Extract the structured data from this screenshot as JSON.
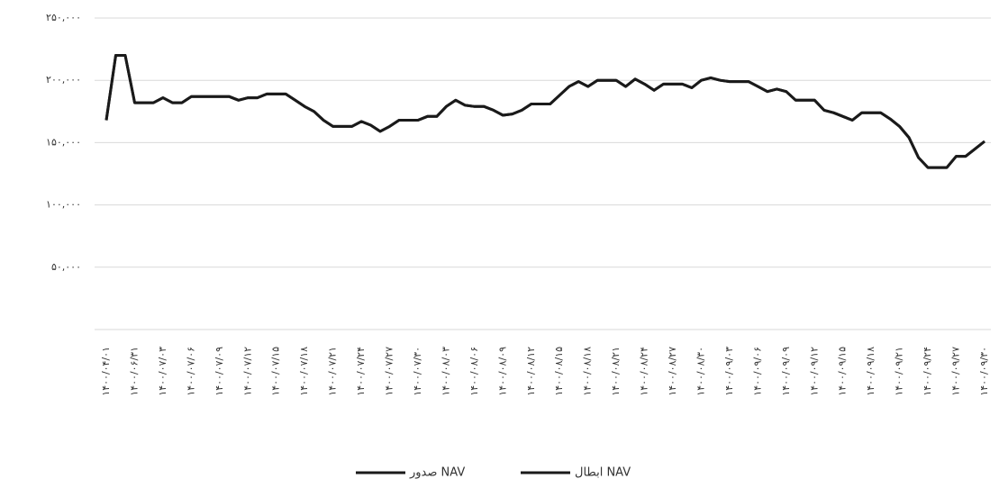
{
  "chart_data": {
    "type": "line",
    "categories": [
      "۱۴۰۰/۰۴/۰۱",
      null,
      null,
      "۱۴۰۰/۰۶/۳۱",
      null,
      null,
      "۱۴۰۰/۰۷/۰۳",
      null,
      null,
      "۱۴۰۰/۰۷/۰۶",
      null,
      null,
      "۱۴۰۰/۰۷/۰۹",
      null,
      null,
      "۱۴۰۰/۰۷/۱۲",
      null,
      null,
      "۱۴۰۰/۰۷/۱۵",
      null,
      null,
      "۱۴۰۰/۰۷/۱۸",
      null,
      null,
      "۱۴۰۰/۰۷/۲۱",
      null,
      null,
      "۱۴۰۰/۰۷/۲۴",
      null,
      null,
      "۱۴۰۰/۰۷/۲۷",
      null,
      null,
      "۱۴۰۰/۰۷/۳۰",
      null,
      null,
      "۱۴۰۰/۰۸/۰۳",
      null,
      null,
      "۱۴۰۰/۰۸/۰۶",
      null,
      null,
      "۱۴۰۰/۰۸/۰۹",
      null,
      null,
      "۱۴۰۰/۰۸/۱۲",
      null,
      null,
      "۱۴۰۰/۰۸/۱۵",
      null,
      null,
      "۱۴۰۰/۰۸/۱۸",
      null,
      null,
      "۱۴۰۰/۰۸/۲۱",
      null,
      null,
      "۱۴۰۰/۰۸/۲۴",
      null,
      null,
      "۱۴۰۰/۰۸/۲۷",
      null,
      null,
      "۱۴۰۰/۰۸/۳۰",
      null,
      null,
      "۱۴۰۰/۰۹/۰۳",
      null,
      null,
      "۱۴۰۰/۰۹/۰۶",
      null,
      null,
      "۱۴۰۰/۰۹/۰۹",
      null,
      null,
      "۱۴۰۰/۰۹/۱۲",
      null,
      null,
      "۱۴۰۰/۰۹/۱۵",
      null,
      null,
      "۱۴۰۰/۰۹/۱۸",
      null,
      null,
      "۱۴۰۰/۰۹/۲۱",
      null,
      null,
      "۱۴۰۰/۰۹/۲۴",
      null,
      null,
      "۱۴۰۰/۰۹/۲۷",
      null,
      null,
      "۱۴۰۰/۰۹/۳۰"
    ],
    "series": [
      {
        "name": "صدور NAV",
        "color": "#1a1a1a",
        "values": [
          168000,
          220000,
          220000,
          182000,
          182000,
          182000,
          186000,
          182000,
          182000,
          187000,
          187000,
          187000,
          187000,
          187000,
          184000,
          186000,
          186000,
          189000,
          189000,
          189000,
          184000,
          179000,
          175000,
          168000,
          163000,
          163000,
          163000,
          167000,
          164000,
          159000,
          163000,
          168000,
          168000,
          168000,
          171000,
          171000,
          179000,
          184000,
          180000,
          179000,
          179000,
          176000,
          172000,
          173000,
          176000,
          181000,
          181000,
          181000,
          188000,
          195000,
          199000,
          195000,
          200000,
          200000,
          200000,
          195000,
          201000,
          197000,
          192000,
          197000,
          197000,
          197000,
          194000,
          200000,
          202000,
          200000,
          199000,
          199000,
          199000,
          195000,
          191000,
          193000,
          191000,
          184000,
          184000,
          184000,
          176000,
          174000,
          171000,
          168000,
          174000,
          174000,
          174000,
          169000,
          163000,
          154000,
          138000,
          130000,
          130000,
          130000,
          139000,
          139000,
          145000,
          151000
        ]
      },
      {
        "name": "ابطال NAV",
        "color": "#1a1a1a",
        "values": [
          168000,
          220000,
          220000,
          182000,
          182000,
          182000,
          186000,
          182000,
          182000,
          187000,
          187000,
          187000,
          187000,
          187000,
          184000,
          186000,
          186000,
          189000,
          189000,
          189000,
          184000,
          179000,
          175000,
          168000,
          163000,
          163000,
          163000,
          167000,
          164000,
          159000,
          163000,
          168000,
          168000,
          168000,
          171000,
          171000,
          179000,
          184000,
          180000,
          179000,
          179000,
          176000,
          172000,
          173000,
          176000,
          181000,
          181000,
          181000,
          188000,
          195000,
          199000,
          195000,
          200000,
          200000,
          200000,
          195000,
          201000,
          197000,
          192000,
          197000,
          197000,
          197000,
          194000,
          200000,
          202000,
          200000,
          199000,
          199000,
          199000,
          195000,
          191000,
          193000,
          191000,
          184000,
          184000,
          184000,
          176000,
          174000,
          171000,
          168000,
          174000,
          174000,
          174000,
          169000,
          163000,
          154000,
          138000,
          130000,
          130000,
          130000,
          139000,
          139000,
          145000,
          151000
        ]
      }
    ],
    "ylim": [
      0,
      250000
    ],
    "yticks": [
      {
        "value": 50000,
        "label": "۵۰,۰۰۰"
      },
      {
        "value": 100000,
        "label": "۱۰۰,۰۰۰"
      },
      {
        "value": 150000,
        "label": "۱۵۰,۰۰۰"
      },
      {
        "value": 200000,
        "label": "۲۰۰,۰۰۰"
      },
      {
        "value": 250000,
        "label": "۲۵۰,۰۰۰"
      }
    ],
    "grid": true
  }
}
